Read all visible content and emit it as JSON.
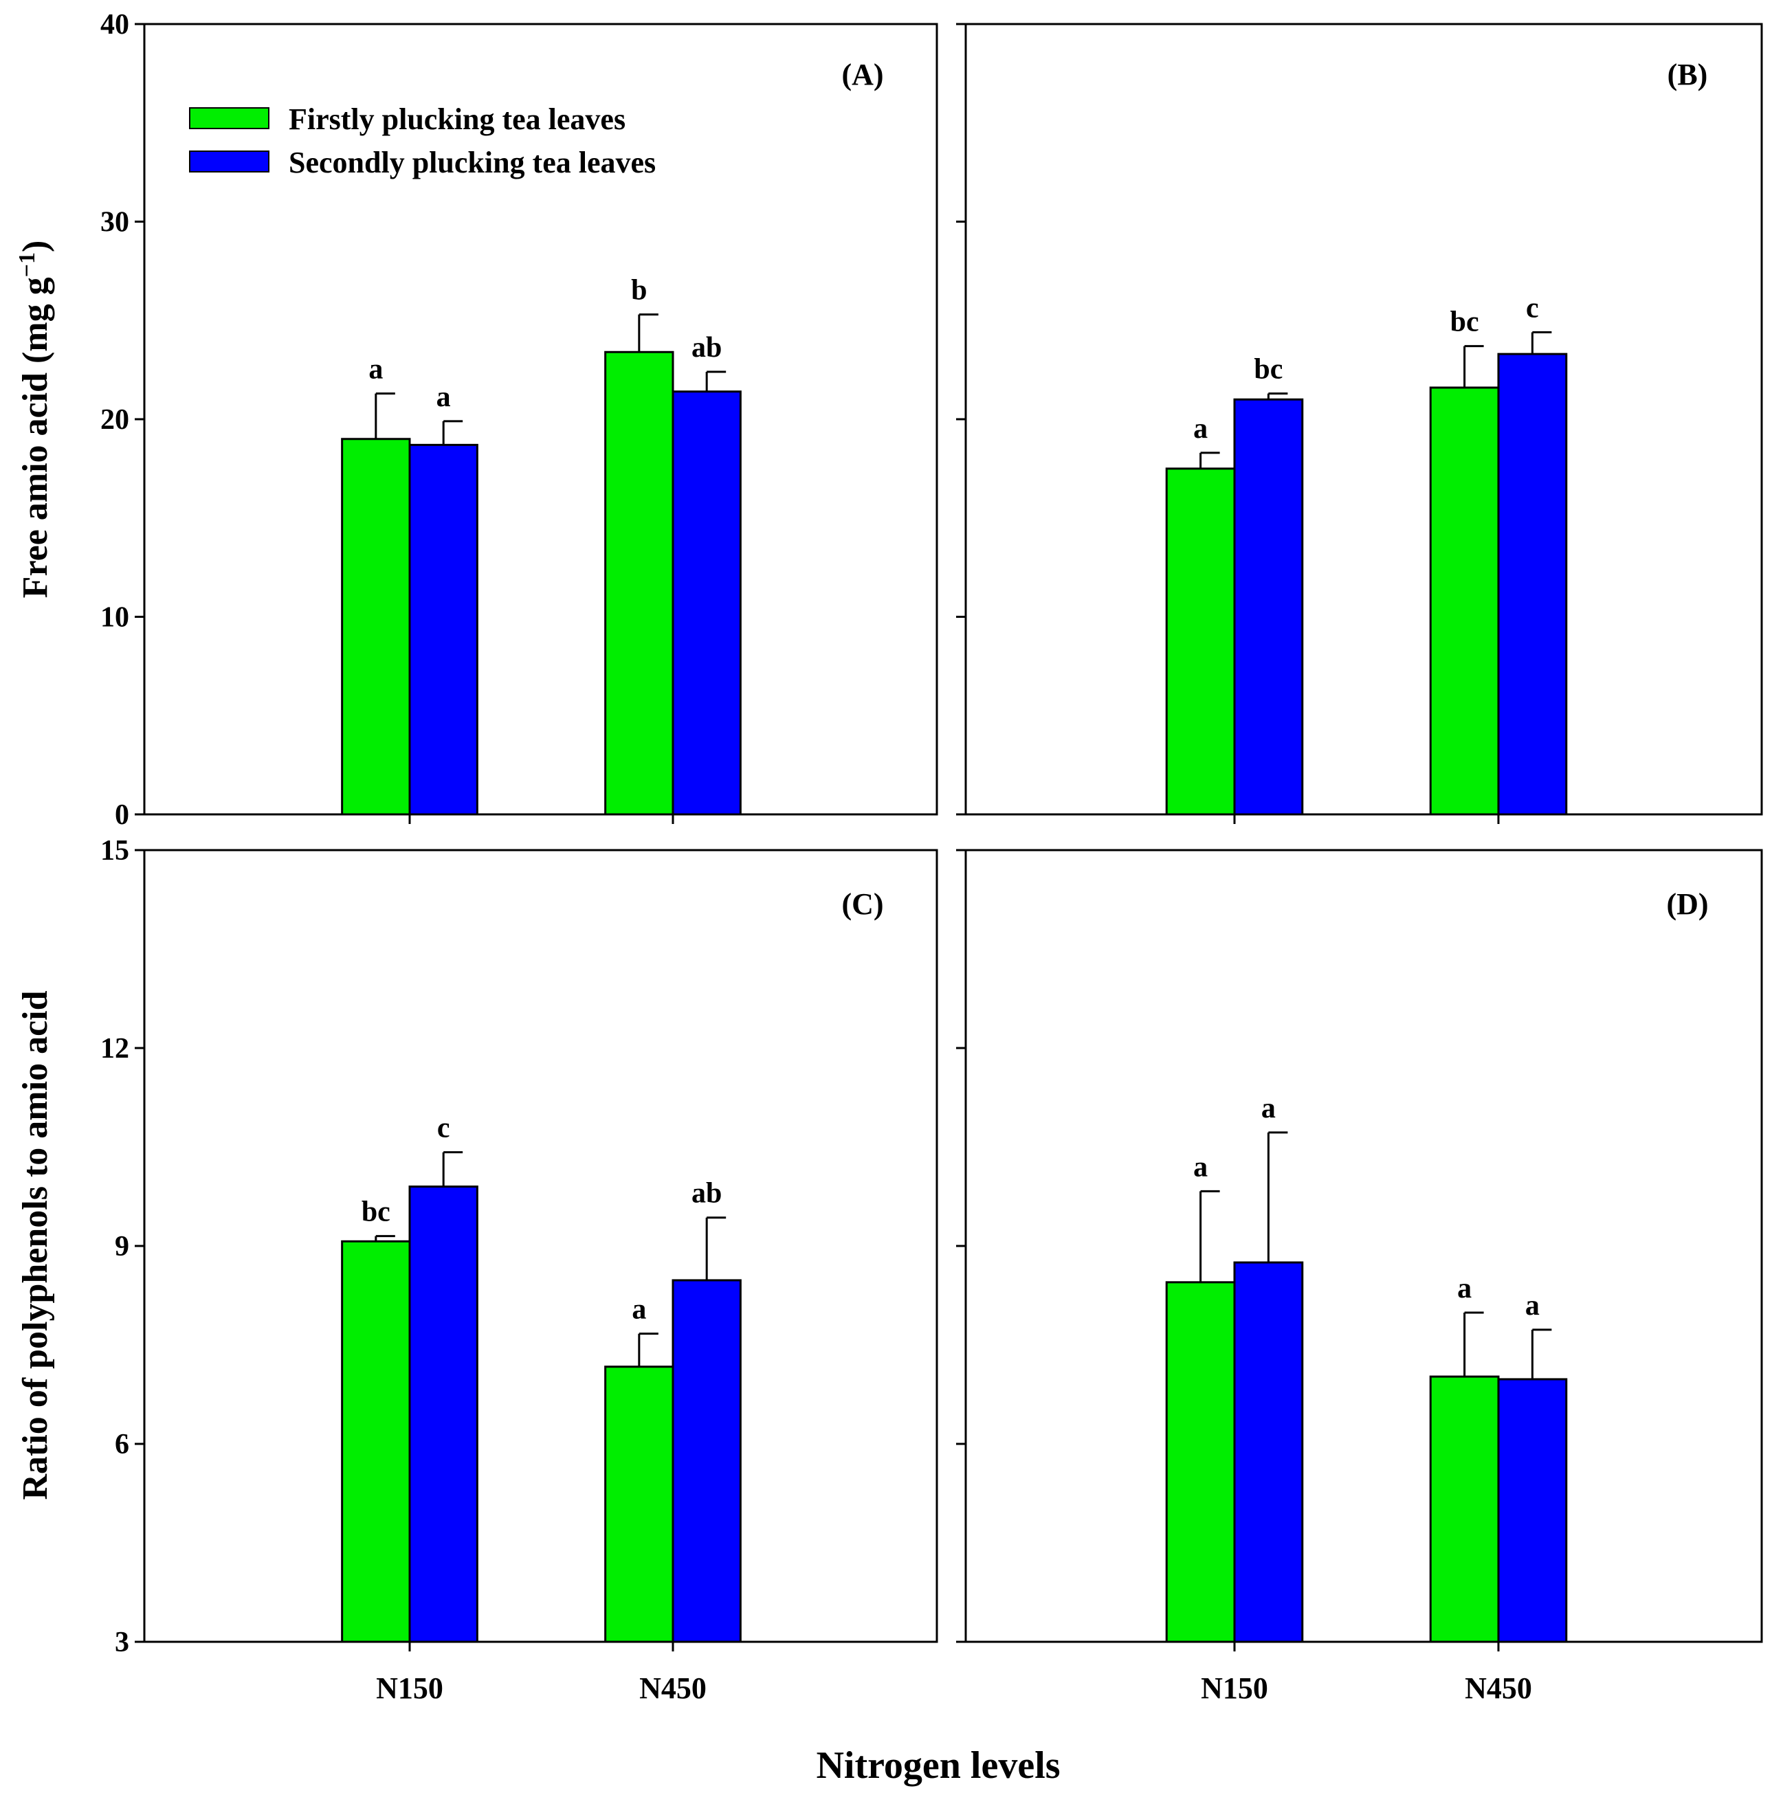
{
  "figure": {
    "x_title": "Nitrogen levels",
    "y_title_top_main": "Free amio acid (mg g",
    "y_title_top_sup": "−1",
    "y_title_top_close": ")",
    "y_title_bottom": "Ratio of polyphenols to amio acid"
  },
  "legend": {
    "items": [
      {
        "label": "Firstly plucking tea leaves",
        "color": "#00ee00"
      },
      {
        "label": "Secondly plucking tea leaves",
        "color": "#0000ff"
      }
    ]
  },
  "colors": {
    "first": "#00ee00",
    "second": "#0000ff",
    "axis": "#000000"
  },
  "chart_data": [
    {
      "panel": "(A)",
      "type": "bar",
      "categories": [
        "N150",
        "N450"
      ],
      "ylim": [
        0,
        40
      ],
      "yticks": [
        0,
        10,
        20,
        30,
        40
      ],
      "ylabel": "Free amio acid (mg g−1)",
      "xlabel": "Nitrogen levels",
      "series": [
        {
          "name": "Firstly plucking tea leaves",
          "values": [
            19.0,
            23.4
          ],
          "errors": [
            2.3,
            1.9
          ],
          "letters": [
            "a",
            "b"
          ]
        },
        {
          "name": "Secondly plucking tea leaves",
          "values": [
            18.7,
            21.4
          ],
          "errors": [
            1.2,
            1.0
          ],
          "letters": [
            "a",
            "ab"
          ]
        }
      ]
    },
    {
      "panel": "(B)",
      "type": "bar",
      "categories": [
        "N150",
        "N450"
      ],
      "ylim": [
        0,
        40
      ],
      "yticks": [
        0,
        10,
        20,
        30,
        40
      ],
      "ylabel": "Free amio acid (mg g−1)",
      "xlabel": "Nitrogen levels",
      "series": [
        {
          "name": "Firstly plucking tea leaves",
          "values": [
            17.5,
            21.6
          ],
          "errors": [
            0.8,
            2.1
          ],
          "letters": [
            "a",
            "bc"
          ]
        },
        {
          "name": "Secondly plucking tea leaves",
          "values": [
            21.0,
            23.3
          ],
          "errors": [
            0.3,
            1.1
          ],
          "letters": [
            "bc",
            "c"
          ]
        }
      ]
    },
    {
      "panel": "(C)",
      "type": "bar",
      "categories": [
        "N150",
        "N450"
      ],
      "ylim": [
        3,
        15
      ],
      "yticks": [
        3,
        6,
        9,
        12,
        15
      ],
      "ylabel": "Ratio of polyphenols to amio acid",
      "xlabel": "Nitrogen levels",
      "series": [
        {
          "name": "Firstly plucking tea leaves",
          "values": [
            9.07,
            7.17
          ],
          "errors": [
            0.08,
            0.5
          ],
          "letters": [
            "bc",
            "a"
          ]
        },
        {
          "name": "Secondly plucking tea leaves",
          "values": [
            9.9,
            8.48
          ],
          "errors": [
            0.52,
            0.95
          ],
          "letters": [
            "c",
            "ab"
          ]
        }
      ]
    },
    {
      "panel": "(D)",
      "type": "bar",
      "categories": [
        "N150",
        "N450"
      ],
      "ylim": [
        3,
        15
      ],
      "yticks": [
        3,
        6,
        9,
        12,
        15
      ],
      "ylabel": "Ratio of polyphenols to amio acid",
      "xlabel": "Nitrogen levels",
      "series": [
        {
          "name": "Firstly plucking tea leaves",
          "values": [
            8.45,
            7.02
          ],
          "errors": [
            1.38,
            0.97
          ],
          "letters": [
            "a",
            "a"
          ]
        },
        {
          "name": "Secondly plucking tea leaves",
          "values": [
            8.75,
            6.98
          ],
          "errors": [
            1.97,
            0.75
          ],
          "letters": [
            "a",
            "a"
          ]
        }
      ]
    }
  ]
}
